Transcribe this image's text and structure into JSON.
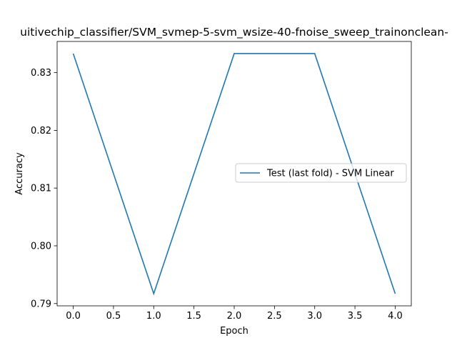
{
  "chart_data": {
    "type": "line",
    "title": "uitivechip_classifier/SVM_svmep-5-svm_wsize-40-fnoise_sweep_trainonclean-",
    "xlabel": "Epoch",
    "ylabel": "Accuracy",
    "x": [
      0,
      1,
      2,
      3,
      4
    ],
    "xlim": [
      -0.2,
      4.2
    ],
    "ylim": [
      0.7896,
      0.8354
    ],
    "xticks": [
      0.0,
      0.5,
      1.0,
      1.5,
      2.0,
      2.5,
      3.0,
      3.5,
      4.0
    ],
    "xtick_labels": [
      "0.0",
      "0.5",
      "1.0",
      "1.5",
      "2.0",
      "2.5",
      "3.0",
      "3.5",
      "4.0"
    ],
    "yticks": [
      0.79,
      0.8,
      0.81,
      0.82,
      0.83
    ],
    "ytick_labels": [
      "0.79",
      "0.80",
      "0.81",
      "0.82",
      "0.83"
    ],
    "grid": false,
    "legend_position": "center-right",
    "series": [
      {
        "name": "Test (last fold) - SVM Linear",
        "values": [
          0.8333,
          0.7917,
          0.8333,
          0.8333,
          0.7917
        ],
        "color": "#1f77b4"
      }
    ]
  }
}
